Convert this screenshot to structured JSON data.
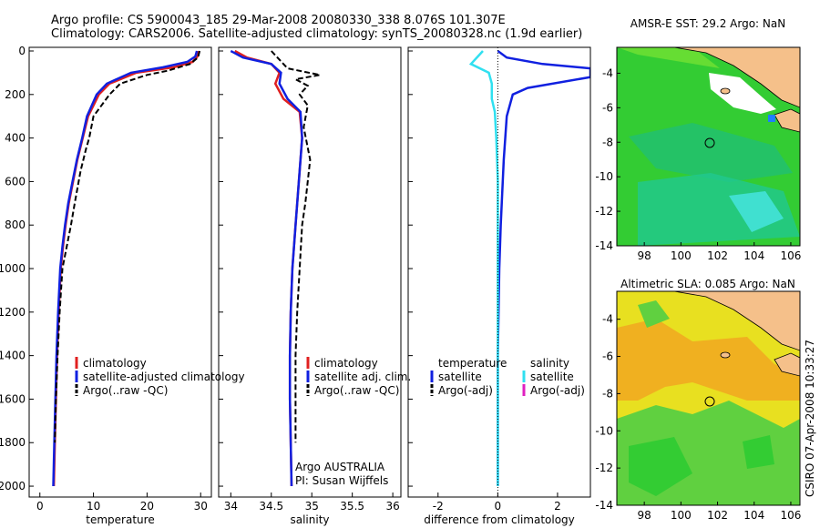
{
  "header": {
    "line1": "Argo profile: CS 5900043_185 29-Mar-2008 20080330_338 8.076S 101.307E",
    "line2": "Climatology: CARS2006. Satellite-adjusted climatology: synTS_20080328.nc (1.9d earlier)"
  },
  "colors": {
    "climatology": "#e02020",
    "satellite": "#1020e0",
    "argo": "#000000",
    "sal_satellite": "#30e0f0",
    "sal_argo": "#e020c0",
    "ocean_green": "#33cc33",
    "land": "#f5c08a"
  },
  "chart_data": [
    {
      "type": "line",
      "id": "temperature",
      "xlabel": "temperature",
      "ylabel": "",
      "xlim": [
        -2,
        32
      ],
      "ylim": [
        2050,
        0
      ],
      "xticks": [
        "0",
        "10",
        "20",
        "30"
      ],
      "yticks": [
        "0",
        "200",
        "400",
        "600",
        "800",
        "1000",
        "1200",
        "1400",
        "1600",
        "1800",
        "2000"
      ],
      "series": [
        {
          "name": "climatology",
          "color": "#e02020",
          "x": [
            29.6,
            29.4,
            28.5,
            25.0,
            18.0,
            13.0,
            11.0,
            10.0,
            9.0,
            8.0,
            7.0,
            6.2,
            5.4,
            4.8,
            4.3,
            3.9,
            3.5,
            3.2,
            3.0,
            2.8,
            2.6
          ],
          "y": [
            0,
            25,
            50,
            75,
            100,
            150,
            200,
            250,
            300,
            400,
            500,
            600,
            700,
            800,
            900,
            1000,
            1200,
            1400,
            1600,
            1800,
            2000
          ]
        },
        {
          "name": "satellite-adjusted climatology",
          "color": "#1020e0",
          "x": [
            29.3,
            29.0,
            27.5,
            23.0,
            17.0,
            12.5,
            10.6,
            9.7,
            8.8,
            7.9,
            6.9,
            6.1,
            5.3,
            4.7,
            4.2,
            3.8,
            3.4,
            3.1,
            2.9,
            2.7,
            2.5
          ],
          "y": [
            0,
            25,
            50,
            75,
            100,
            150,
            200,
            250,
            300,
            400,
            500,
            600,
            700,
            800,
            900,
            1000,
            1200,
            1400,
            1600,
            1800,
            2000
          ]
        },
        {
          "name": "Argo(..raw -QC)",
          "color": "#000000",
          "dashed": true,
          "x": [
            29.8,
            29.5,
            28.0,
            24.0,
            20.0,
            15.0,
            13.0,
            11.5,
            10.0,
            9.2,
            8.6,
            7.6,
            6.5,
            5.8,
            5.0,
            4.2,
            3.7,
            3.3,
            3.0,
            2.8
          ],
          "y": [
            0,
            30,
            60,
            90,
            110,
            150,
            200,
            250,
            300,
            400,
            450,
            550,
            700,
            800,
            900,
            1000,
            1200,
            1400,
            1600,
            1800
          ]
        }
      ],
      "legend": {
        "position": "middle-right",
        "entries": [
          "climatology",
          "satellite-adjusted climatology",
          "Argo(..raw -QC)"
        ]
      }
    },
    {
      "type": "line",
      "id": "salinity",
      "xlabel": "salinity",
      "xlim": [
        33.85,
        36.1
      ],
      "ylim": [
        2050,
        0
      ],
      "xticks": [
        "34",
        "34.5",
        "35",
        "35.5",
        "36"
      ],
      "series": [
        {
          "name": "climatology",
          "color": "#e02020",
          "x": [
            34.05,
            34.2,
            34.5,
            34.6,
            34.55,
            34.65,
            34.85,
            34.88,
            34.84,
            34.8,
            34.76,
            34.74,
            34.73,
            34.73,
            34.74,
            34.75
          ],
          "y": [
            0,
            30,
            60,
            100,
            150,
            220,
            280,
            400,
            600,
            800,
            1000,
            1200,
            1400,
            1600,
            1800,
            2000
          ]
        },
        {
          "name": "satellite adj. clim.",
          "color": "#1020e0",
          "x": [
            34.0,
            34.15,
            34.5,
            34.62,
            34.6,
            34.7,
            34.86,
            34.88,
            34.84,
            34.8,
            34.76,
            34.74,
            34.73,
            34.73,
            34.74,
            34.75
          ],
          "y": [
            0,
            30,
            60,
            100,
            150,
            220,
            280,
            400,
            600,
            800,
            1000,
            1200,
            1400,
            1600,
            1800,
            2000
          ]
        },
        {
          "name": "Argo(..raw -QC)",
          "color": "#000000",
          "dashed": true,
          "x": [
            34.5,
            34.7,
            35.1,
            34.8,
            34.95,
            34.85,
            34.95,
            34.9,
            34.98,
            34.92,
            34.88,
            34.85,
            34.82,
            34.8,
            34.8,
            34.8
          ],
          "y": [
            0,
            80,
            110,
            130,
            160,
            200,
            250,
            350,
            500,
            700,
            800,
            1000,
            1200,
            1400,
            1600,
            1800
          ]
        }
      ],
      "legend": {
        "position": "middle-right",
        "entries": [
          "climatology",
          "satellite adj. clim.",
          "Argo(..raw -QC)"
        ]
      },
      "annotation": [
        "Argo AUSTRALIA",
        "PI: Susan Wijffels"
      ]
    },
    {
      "type": "line",
      "id": "difference",
      "xlabel": "difference from climatology",
      "xlim": [
        -3,
        3.1
      ],
      "ylim": [
        2050,
        0
      ],
      "xticks": [
        "-2",
        "0",
        "2"
      ],
      "series": [
        {
          "name": "temperature satellite",
          "color": "#1020e0",
          "x": [
            0.0,
            0.3,
            1.5,
            3.1,
            3.1,
            1.0,
            0.5,
            0.3,
            0.2,
            0.1,
            0.05,
            0.0,
            0.0,
            0.0
          ],
          "y": [
            0,
            30,
            60,
            80,
            120,
            170,
            200,
            300,
            500,
            800,
            1000,
            1400,
            1800,
            2000
          ]
        },
        {
          "name": "salinity satellite",
          "color": "#30e0f0",
          "x": [
            -0.5,
            -0.9,
            -0.3,
            -0.2,
            -0.2,
            -0.1,
            -0.05,
            0.0,
            0.0,
            0.0,
            0.0,
            0.0
          ],
          "y": [
            0,
            60,
            100,
            150,
            220,
            280,
            400,
            600,
            800,
            1000,
            1400,
            2000
          ]
        }
      ],
      "legend": {
        "position": "middle",
        "columns": [
          [
            "temperature",
            "satellite",
            "Argo(-adj)"
          ],
          [
            "salinity",
            "satellite",
            "Argo(-adj)"
          ]
        ]
      }
    },
    {
      "type": "heatmap",
      "id": "sst-map",
      "title": "AMSR-E SST: 29.2 Argo: NaN",
      "xlim": [
        96.5,
        106.5
      ],
      "ylim": [
        -14,
        -2.5
      ],
      "xticks": [
        "98",
        "100",
        "102",
        "104",
        "106"
      ],
      "yticks": [
        "-4",
        "-6",
        "-8",
        "-10",
        "-12",
        "-14"
      ],
      "argo_position": {
        "lon": 101.307,
        "lat": -8.076
      }
    },
    {
      "type": "heatmap",
      "id": "sla-map",
      "title": "Altimetric SLA: 0.085 Argo: NaN",
      "xlim": [
        96.5,
        106.5
      ],
      "ylim": [
        -14,
        -2.5
      ],
      "xticks": [
        "98",
        "100",
        "102",
        "104",
        "106"
      ],
      "yticks": [
        "-4",
        "-6",
        "-8",
        "-10",
        "-12",
        "-14"
      ],
      "argo_position": {
        "lon": 101.307,
        "lat": -8.076
      }
    }
  ],
  "credit": "CSIRO 07-Apr-2008 10:33:27"
}
